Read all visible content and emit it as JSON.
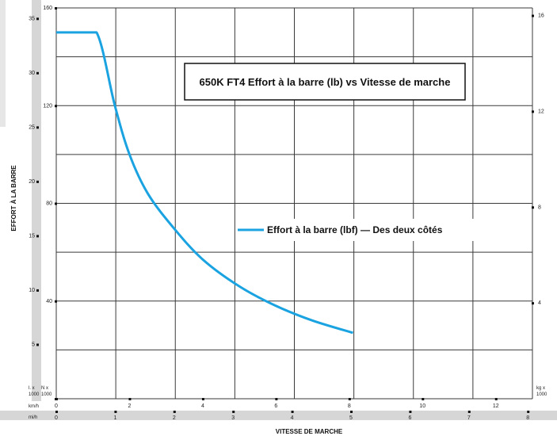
{
  "colors": {
    "curve": "#1aa3e0",
    "side_bar": "#d6d6d6",
    "bottom_bar": "#d6d6d6",
    "grid": "#3a3a3a"
  },
  "chart_data": {
    "type": "line",
    "title": "650K FT4 Effort à la barre (lb) vs Vitesse de marche",
    "xlabel": "VITESSE DE MARCHE",
    "ylabel": "EFFORT À LA BARRE",
    "xlim": [
      0,
      13
    ],
    "ylim": [
      0,
      160
    ],
    "grid": true,
    "legend_position": "center-right",
    "series": [
      {
        "name": "Effort à la barre (lbf) — Des deux côtés",
        "x_unit": "km/h",
        "y_unit": "kN",
        "x": [
          0,
          0.5,
          1.1,
          1.6,
          2.0,
          2.5,
          3.2,
          4.0,
          5.0,
          6.0,
          7.0,
          8.1
        ],
        "y": [
          150,
          150,
          150,
          120,
          100,
          84,
          70,
          57,
          46,
          38,
          32,
          27
        ]
      }
    ],
    "axes": {
      "kn_ticks": [
        "40",
        "80",
        "120",
        "160"
      ],
      "lb_ticks": [
        "5",
        "10",
        "15",
        "20",
        "25",
        "30",
        "35"
      ],
      "kg_ticks": [
        "4",
        "8",
        "12",
        "16"
      ],
      "kmh_ticks": [
        "0",
        "2",
        "4",
        "6",
        "8",
        "10",
        "12"
      ],
      "mph_ticks": [
        "0",
        "1",
        "2",
        "3",
        "4",
        "5",
        "6",
        "7",
        "8"
      ],
      "lb_unit": "l. x\n1000",
      "kn_unit": "N x\n1000",
      "kg_unit": "kg x\n1000",
      "kmh_unit": "km/h",
      "mph_unit": "mi/h"
    }
  }
}
